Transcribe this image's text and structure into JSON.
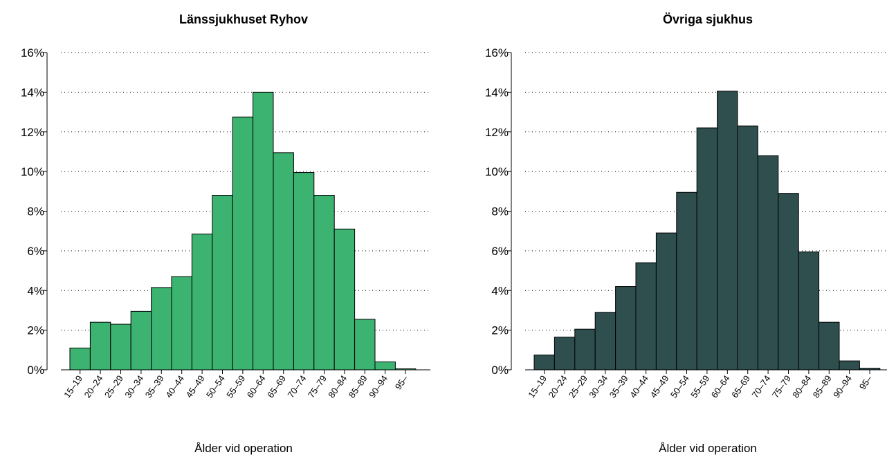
{
  "chart_data": [
    {
      "type": "bar",
      "title": "Länssjukhuset Ryhov",
      "xlabel": "Ålder vid operation",
      "categories": [
        "15–19",
        "20–24",
        "25–29",
        "30–34",
        "35–39",
        "40–44",
        "45–49",
        "50–54",
        "55–59",
        "60–64",
        "65–69",
        "70–74",
        "75–79",
        "80–84",
        "85–89",
        "90–94",
        "95–"
      ],
      "values": [
        1.1,
        2.4,
        2.3,
        2.95,
        4.15,
        4.7,
        6.85,
        8.8,
        12.75,
        14.0,
        10.95,
        9.95,
        8.8,
        7.1,
        2.55,
        0.4,
        0.05
      ],
      "color": "#3cb371",
      "ylim": [
        0,
        16
      ],
      "yticks": [
        {
          "value": 0,
          "label": "0%"
        },
        {
          "value": 2,
          "label": "2%"
        },
        {
          "value": 4,
          "label": "4%"
        },
        {
          "value": 6,
          "label": "6%"
        },
        {
          "value": 8,
          "label": "8%"
        },
        {
          "value": 10,
          "label": "10%"
        },
        {
          "value": 12,
          "label": "12%"
        },
        {
          "value": 14,
          "label": "14%"
        },
        {
          "value": 16,
          "label": "16%"
        }
      ],
      "grid": true
    },
    {
      "type": "bar",
      "title": "Övriga sjukhus",
      "xlabel": "Ålder vid operation",
      "categories": [
        "15–19",
        "20–24",
        "25–29",
        "30–34",
        "35–39",
        "40–44",
        "45–49",
        "50–54",
        "55–59",
        "60–64",
        "65–69",
        "70–74",
        "75–79",
        "80–84",
        "85–89",
        "90–94",
        "95–"
      ],
      "values": [
        0.75,
        1.65,
        2.05,
        2.9,
        4.2,
        5.4,
        6.9,
        8.95,
        12.2,
        14.05,
        12.3,
        10.8,
        8.9,
        5.95,
        2.4,
        0.45,
        0.08
      ],
      "color": "#2f4f4f",
      "ylim": [
        0,
        16
      ],
      "yticks": [
        {
          "value": 0,
          "label": "0%"
        },
        {
          "value": 2,
          "label": "2%"
        },
        {
          "value": 4,
          "label": "4%"
        },
        {
          "value": 6,
          "label": "6%"
        },
        {
          "value": 8,
          "label": "8%"
        },
        {
          "value": 10,
          "label": "10%"
        },
        {
          "value": 12,
          "label": "12%"
        },
        {
          "value": 14,
          "label": "14%"
        },
        {
          "value": 16,
          "label": "16%"
        }
      ],
      "grid": true
    }
  ]
}
